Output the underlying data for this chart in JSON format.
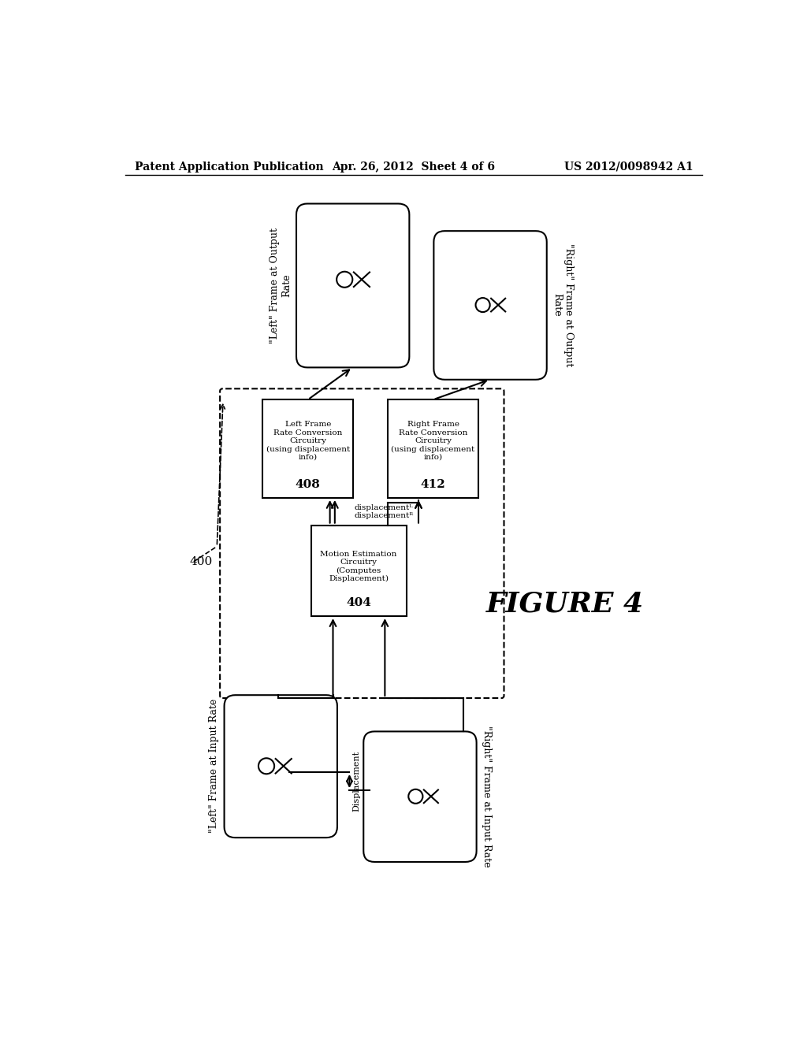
{
  "bg_color": "#ffffff",
  "header_left": "Patent Application Publication",
  "header_center": "Apr. 26, 2012  Sheet 4 of 6",
  "header_right": "US 2012/0098942 A1",
  "figure_label": "FIGURE 4",
  "label_400": "400",
  "left_input_label": "\"Left\" Frame at Input Rate",
  "right_input_label": "\"Right\" Frame at Input Rate",
  "left_output_label": "\"Left\" Frame at Output\nRate",
  "right_output_label": "\"Right\" Frame at Output\nRate",
  "motion_box_label": "Motion Estimation\nCircuitry\n(Computes\nDisplacement)",
  "motion_box_num": "404",
  "left_conv_label": "Left Frame\nRate Conversion\nCircuitry\n(using displacement\ninfo)",
  "left_conv_num": "408",
  "right_conv_label": "Right Frame\nRate Conversion\nCircuitry\n(using displacement\ninfo)",
  "right_conv_num": "412",
  "displacementL_label": "displacementᴸ",
  "displacementR_label": "displacementᴿ",
  "displacement_arrow_label": "Displacement"
}
